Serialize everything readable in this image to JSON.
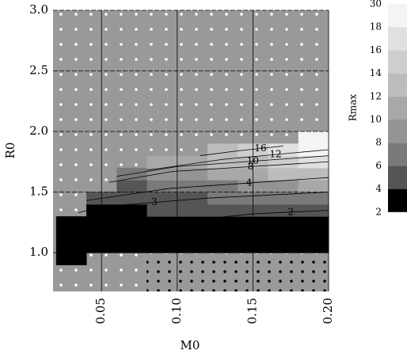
{
  "chart_data": {
    "type": "heatmap",
    "x_label": "M0",
    "y_label": "R0",
    "colorbar_label": "Rmax",
    "xlim": [
      0.018,
      0.2
    ],
    "ylim": [
      0.68,
      3.0
    ],
    "xticks": [
      0.05,
      {
        "value": 0.1,
        "label": "0.10"
      },
      0.15,
      {
        "value": 0.2,
        "label": "0.20"
      }
    ],
    "yticks": [
      {
        "value": 1,
        "label": "1.0"
      },
      1.5,
      {
        "value": 2,
        "label": "2.0"
      },
      2.5,
      {
        "value": 3,
        "label": "3.0"
      }
    ],
    "grid": true,
    "levels": [
      2,
      4,
      6,
      8,
      10,
      12,
      14,
      16,
      18,
      30
    ],
    "colors": [
      "#000000",
      "#555555",
      "#7a7a7a",
      "#949494",
      "#a8a8a8",
      "#bcbcbc",
      "#cecece",
      "#e0e0e0",
      "#f4f4f4"
    ],
    "x_edges": [
      0.02,
      0.04,
      0.06,
      0.08,
      0.1,
      0.12,
      0.14,
      0.16,
      0.18,
      0.2
    ],
    "y_edges": [
      0.9,
      1.0,
      1.1,
      1.2,
      1.3,
      1.4,
      1.5,
      1.6,
      1.7,
      1.8,
      1.9,
      2.0
    ],
    "z": [
      [
        2,
        null,
        null,
        null,
        null,
        null,
        null,
        null,
        null
      ],
      [
        2,
        2.5,
        2,
        2,
        2,
        2,
        2,
        2,
        2
      ],
      [
        3,
        3,
        2.5,
        2.5,
        2.5,
        2,
        2,
        2,
        2
      ],
      [
        3,
        3,
        3,
        3,
        3,
        3,
        3,
        3,
        2
      ],
      [
        null,
        3,
        3,
        4,
        4,
        4,
        5,
        5,
        5
      ],
      [
        null,
        4,
        4,
        5,
        5,
        6,
        6,
        7,
        7
      ],
      [
        null,
        null,
        5,
        6,
        6,
        7,
        8,
        9,
        10
      ],
      [
        null,
        null,
        7,
        8,
        9,
        10,
        11,
        12,
        13
      ],
      [
        null,
        null,
        null,
        10,
        11,
        12,
        13,
        14,
        16
      ],
      [
        null,
        null,
        null,
        null,
        null,
        13,
        15,
        17,
        18
      ],
      [
        null,
        null,
        null,
        null,
        null,
        null,
        null,
        null,
        18
      ]
    ],
    "contours": [
      {
        "level": 16,
        "x": [
          0.115,
          0.14,
          0.17
        ],
        "y": [
          1.8,
          1.84,
          1.88
        ]
      },
      {
        "level": 12,
        "x": [
          0.08,
          0.13,
          0.2
        ],
        "y": [
          1.68,
          1.77,
          1.85
        ]
      },
      {
        "level": 10,
        "x": [
          0.06,
          0.1,
          0.2
        ],
        "y": [
          1.63,
          1.71,
          1.8
        ]
      },
      {
        "level": 8,
        "x": [
          0.055,
          0.097,
          0.2
        ],
        "y": [
          1.58,
          1.67,
          1.75
        ]
      },
      {
        "level": 4,
        "x": [
          0.04,
          0.095,
          0.2
        ],
        "y": [
          1.43,
          1.53,
          1.62
        ]
      },
      {
        "level": 3,
        "x": [
          0.035,
          0.05,
          0.12,
          0.2
        ],
        "y": [
          1.33,
          1.38,
          1.45,
          1.5
        ]
      },
      {
        "level": 2,
        "x": [
          0.07,
          0.15,
          0.2
        ],
        "y": [
          1.22,
          1.32,
          1.35
        ]
      }
    ]
  }
}
